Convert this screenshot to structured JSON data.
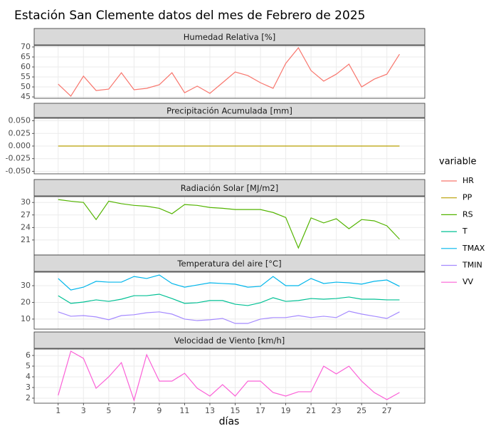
{
  "title": "Estación San Clemente datos del mes de Febrero de 2025",
  "x_label": "días",
  "legend_title": "variable",
  "x": [
    1,
    2,
    3,
    4,
    5,
    6,
    7,
    8,
    9,
    10,
    11,
    12,
    13,
    14,
    15,
    16,
    17,
    18,
    19,
    20,
    21,
    22,
    23,
    24,
    25,
    26,
    27,
    28
  ],
  "xlim": [
    -0.9,
    30.0
  ],
  "xticks": [
    1,
    3,
    5,
    7,
    9,
    11,
    13,
    15,
    17,
    19,
    21,
    23,
    25,
    27
  ],
  "grid": true,
  "chart_data": [
    {
      "type": "line",
      "title": "Humedad Relativa [%]",
      "ylim": [
        44.3,
        70.7
      ],
      "yticks": [
        45,
        50,
        55,
        60,
        65,
        70
      ],
      "series": [
        {
          "name": "HR",
          "color": "#F8766D",
          "values": [
            51.4,
            45.4,
            55.4,
            48.2,
            48.9,
            57.1,
            48.6,
            49.3,
            51.1,
            57.1,
            47.1,
            50.4,
            46.8,
            52.1,
            57.5,
            55.7,
            52.1,
            49.3,
            61.8,
            69.6,
            58.2,
            52.9,
            56.4,
            61.4,
            50.0,
            53.9,
            56.4,
            66.4
          ]
        }
      ]
    },
    {
      "type": "line",
      "title": "Precipitación Acumulada [mm]",
      "ylim": [
        -0.055,
        0.055
      ],
      "yticks": [
        {
          "value": -0.05,
          "label": "-0.050"
        },
        {
          "value": -0.025,
          "label": "-0.025"
        },
        {
          "value": 0,
          "label": "0.000"
        },
        {
          "value": 0.025,
          "label": "0.025"
        },
        {
          "value": 0.05,
          "label": "0.050"
        }
      ],
      "series": [
        {
          "name": "PP",
          "color": "#B79F00",
          "values": [
            0,
            0,
            0,
            0,
            0,
            0,
            0,
            0,
            0,
            0,
            0,
            0,
            0,
            0,
            0,
            0,
            0,
            0,
            0,
            0,
            0,
            0,
            0,
            0,
            0,
            0,
            0,
            0
          ]
        }
      ]
    },
    {
      "type": "line",
      "title": "Radiación Solar [MJ/m2]",
      "ylim": [
        17.4,
        31.4
      ],
      "yticks": [
        21,
        24,
        27,
        30
      ],
      "series": [
        {
          "name": "RS",
          "color": "#53B400",
          "values": [
            30.7,
            30.3,
            30.0,
            25.9,
            30.3,
            29.7,
            29.3,
            29.1,
            28.6,
            27.3,
            29.5,
            29.3,
            28.8,
            28.6,
            28.3,
            28.3,
            28.3,
            27.6,
            26.4,
            19.1,
            26.3,
            25.1,
            26.1,
            23.7,
            25.9,
            25.6,
            24.4,
            21.2
          ]
        }
      ]
    },
    {
      "type": "line",
      "title": "Temperatura del aire [°C]",
      "ylim": [
        4.0,
        38.1
      ],
      "yticks": [
        10,
        20,
        30
      ],
      "series": [
        {
          "name": "T",
          "color": "#00C094",
          "values": [
            24.0,
            19.4,
            20.2,
            21.5,
            20.6,
            21.9,
            24.0,
            24.0,
            24.9,
            22.3,
            19.4,
            19.8,
            21.1,
            21.1,
            18.9,
            18.1,
            19.8,
            22.8,
            20.6,
            21.1,
            22.3,
            21.9,
            22.3,
            23.2,
            21.9,
            21.9,
            21.5,
            21.5
          ]
        },
        {
          "name": "TMAX",
          "color": "#00B6EB",
          "values": [
            34.3,
            27.4,
            29.1,
            32.6,
            32.1,
            32.1,
            35.5,
            34.3,
            36.4,
            31.3,
            29.1,
            30.4,
            31.7,
            31.3,
            30.9,
            29.1,
            29.6,
            35.5,
            30.0,
            30.0,
            34.3,
            31.3,
            32.1,
            31.7,
            30.9,
            32.6,
            33.4,
            29.6
          ]
        },
        {
          "name": "TMIN",
          "color": "#A58AFF",
          "values": [
            14.3,
            11.7,
            12.1,
            11.3,
            9.6,
            12.1,
            12.6,
            13.8,
            14.3,
            13.0,
            10.0,
            9.1,
            9.6,
            10.4,
            7.4,
            7.4,
            10.0,
            10.9,
            10.9,
            12.1,
            10.9,
            11.7,
            10.9,
            14.7,
            13.0,
            11.7,
            10.4,
            14.3
          ]
        }
      ]
    },
    {
      "type": "line",
      "title": "Velocidad de Viento [km/h]",
      "ylim": [
        1.53,
        6.6
      ],
      "yticks": [
        2,
        3,
        4,
        5,
        6
      ],
      "series": [
        {
          "name": "VV",
          "color": "#FB61D7",
          "values": [
            2.27,
            6.4,
            5.73,
            2.93,
            4.0,
            5.33,
            1.8,
            6.07,
            3.6,
            3.6,
            4.33,
            2.93,
            2.2,
            3.27,
            2.2,
            3.6,
            3.6,
            2.53,
            2.2,
            2.6,
            2.6,
            5.0,
            4.27,
            5.0,
            3.6,
            2.53,
            1.87,
            2.53
          ]
        }
      ]
    }
  ]
}
